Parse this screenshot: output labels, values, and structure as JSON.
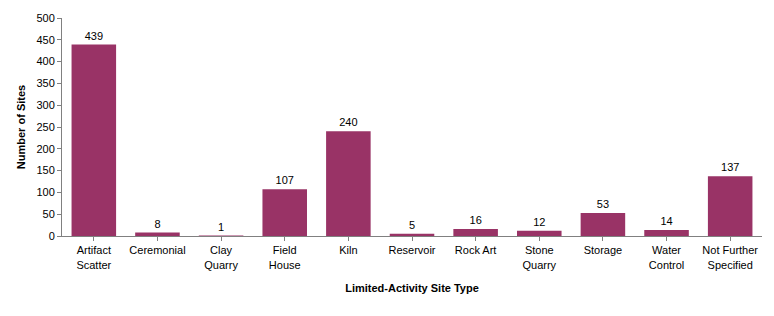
{
  "chart_data": {
    "type": "bar",
    "x_label": "Limited-Activity Site Type",
    "y_label": "Number of Sites",
    "categories": [
      "Artifact\nScatter",
      "Ceremonial",
      "Clay\nQuarry",
      "Field\nHouse",
      "Kiln",
      "Reservoir",
      "Rock Art",
      "Stone\nQuarry",
      "Storage",
      "Water\nControl",
      "Not Further\nSpecified"
    ],
    "values": [
      439,
      8,
      1,
      107,
      240,
      5,
      16,
      12,
      53,
      14,
      137
    ],
    "color": "#993366",
    "ylim": [
      0,
      500
    ],
    "yticks": [
      0,
      50,
      100,
      150,
      200,
      250,
      300,
      350,
      400,
      450,
      500
    ],
    "grid": false,
    "data_labels": true
  }
}
